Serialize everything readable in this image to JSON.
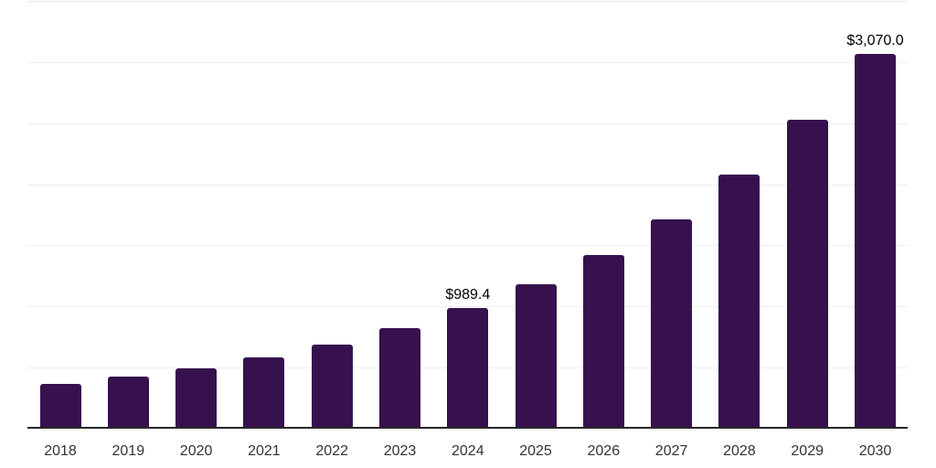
{
  "chart": {
    "background_color": "#ffffff",
    "bar_color": "#36114e",
    "gridline_color": "#eeeef1",
    "axis_line_color": "#262626",
    "tick_label_color": "#333333",
    "value_label_color": "#000000"
  },
  "chart_data": {
    "type": "bar",
    "title": "",
    "xlabel": "",
    "ylabel": "",
    "categories": [
      "2018",
      "2019",
      "2020",
      "2021",
      "2022",
      "2023",
      "2024",
      "2025",
      "2026",
      "2027",
      "2028",
      "2029",
      "2030"
    ],
    "values": [
      370,
      430,
      495,
      585,
      690,
      820,
      989.4,
      1180,
      1420,
      1715,
      2080,
      2525,
      3070
    ],
    "data_labels": [
      "",
      "",
      "",
      "",
      "",
      "",
      "$989.4",
      "",
      "",
      "",
      "",
      "",
      "$3,070.0"
    ],
    "ylim": [
      0,
      3500
    ],
    "gridline_interval": 500,
    "grid": true,
    "legend": false,
    "y_tick_labels_visible": false
  }
}
